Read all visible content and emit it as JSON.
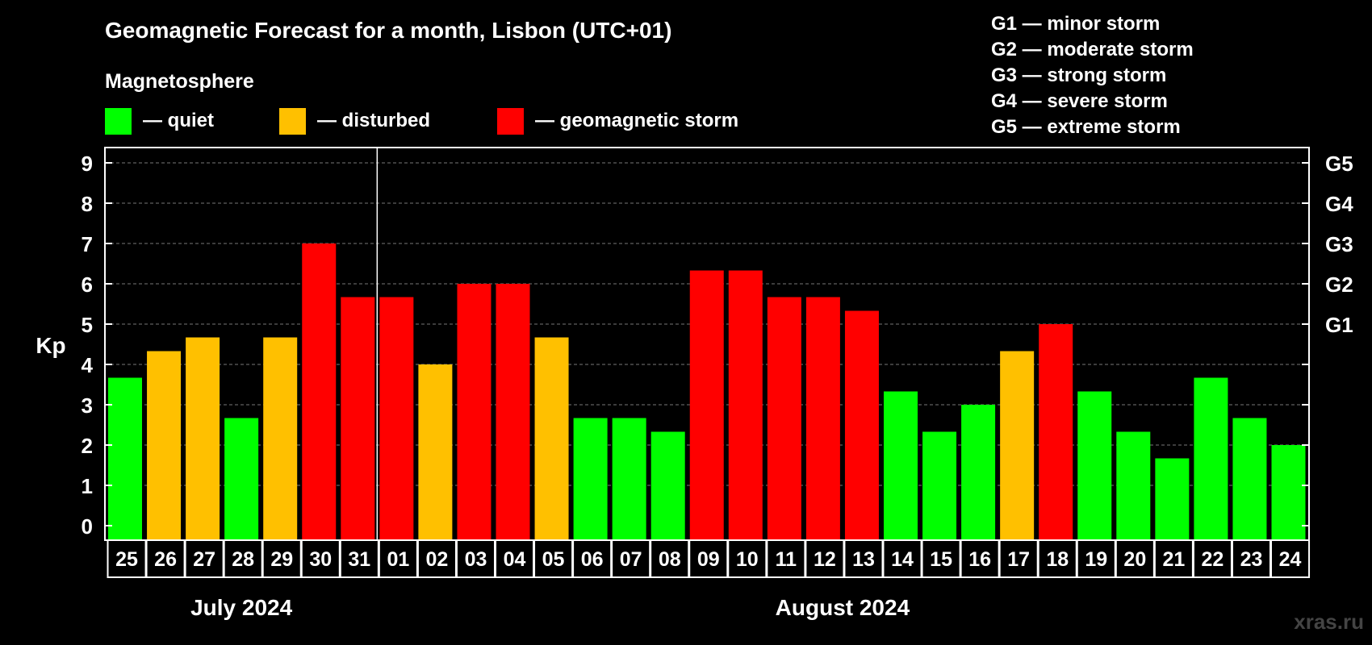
{
  "chart_data": {
    "type": "bar",
    "title": "Geomagnetic Forecast for a month, Lisbon (UTC+01)",
    "ylabel": "Kp",
    "ylim": [
      0,
      9
    ],
    "yticks": [
      "0",
      "1",
      "2",
      "3",
      "4",
      "5",
      "6",
      "7",
      "8",
      "9"
    ],
    "right_axis": {
      "labels": [
        {
          "value": 5,
          "label": "G1"
        },
        {
          "value": 6,
          "label": "G2"
        },
        {
          "value": 7,
          "label": "G3"
        },
        {
          "value": 8,
          "label": "G4"
        },
        {
          "value": 9,
          "label": "G5"
        }
      ]
    },
    "grid": true,
    "legend": {
      "heading": "Magnetosphere",
      "placement": "top-left",
      "entries": [
        {
          "label": "— quiet",
          "color": "#00ff00"
        },
        {
          "label": "— disturbed",
          "color": "#ffc000"
        },
        {
          "label": "— geomagnetic storm",
          "color": "#ff0000"
        }
      ]
    },
    "storm_scale": [
      "G1 — minor storm",
      "G2 — moderate storm",
      "G3 — strong storm",
      "G4 — severe storm",
      "G5 — extreme storm"
    ],
    "months": [
      {
        "label": "July 2024",
        "first_index": 0,
        "last_index": 6
      },
      {
        "label": "August 2024",
        "first_index": 7,
        "last_index": 30
      }
    ],
    "categories": [
      "25",
      "26",
      "27",
      "28",
      "29",
      "30",
      "31",
      "01",
      "02",
      "03",
      "04",
      "05",
      "06",
      "07",
      "08",
      "09",
      "10",
      "11",
      "12",
      "13",
      "14",
      "15",
      "16",
      "17",
      "18",
      "19",
      "20",
      "21",
      "22",
      "23",
      "24"
    ],
    "values": [
      3.67,
      4.33,
      4.67,
      2.67,
      4.67,
      7.0,
      5.67,
      5.67,
      4.0,
      6.0,
      6.0,
      4.67,
      2.67,
      2.67,
      2.33,
      6.33,
      6.33,
      5.67,
      5.67,
      5.33,
      3.33,
      2.33,
      3.0,
      4.33,
      5.0,
      3.33,
      2.33,
      1.67,
      3.67,
      2.67,
      2.0
    ],
    "levels": [
      "quiet",
      "disturbed",
      "disturbed",
      "quiet",
      "disturbed",
      "storm",
      "storm",
      "storm",
      "disturbed",
      "storm",
      "storm",
      "disturbed",
      "quiet",
      "quiet",
      "quiet",
      "storm",
      "storm",
      "storm",
      "storm",
      "storm",
      "quiet",
      "quiet",
      "quiet",
      "disturbed",
      "storm",
      "quiet",
      "quiet",
      "quiet",
      "quiet",
      "quiet",
      "quiet"
    ],
    "colors": {
      "quiet": "#00ff00",
      "disturbed": "#ffc000",
      "storm": "#ff0000"
    }
  },
  "watermark": "xras.ru"
}
